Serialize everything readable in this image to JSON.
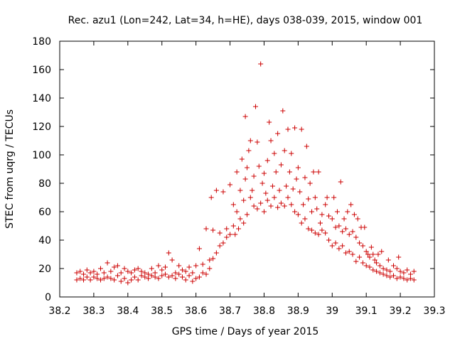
{
  "chart_data": {
    "type": "scatter",
    "title": "Rec. azu1 (Lon=242, Lat=34, h=HE), days 038-039, 2015, window 001",
    "xlabel": "GPS time / Days of year 2015",
    "ylabel": "STEC from uqrg / TECUs",
    "xlim": [
      38.2,
      39.3
    ],
    "ylim": [
      0,
      180
    ],
    "xticks": [
      "38.2",
      "38.3",
      "38.4",
      "38.5",
      "38.6",
      "38.7",
      "38.8",
      "38.9",
      "39",
      "39.1",
      "39.2",
      "39.3"
    ],
    "yticks": [
      "0",
      "20",
      "40",
      "60",
      "80",
      "100",
      "120",
      "140",
      "160",
      "180"
    ],
    "marker": "+",
    "color": "#cc0000",
    "series": [
      {
        "name": "STEC",
        "points": [
          [
            38.25,
            12
          ],
          [
            38.25,
            17
          ],
          [
            38.26,
            13
          ],
          [
            38.26,
            18
          ],
          [
            38.27,
            12
          ],
          [
            38.27,
            16
          ],
          [
            38.28,
            14
          ],
          [
            38.28,
            19
          ],
          [
            38.29,
            12
          ],
          [
            38.29,
            17
          ],
          [
            38.3,
            14
          ],
          [
            38.3,
            18
          ],
          [
            38.31,
            13
          ],
          [
            38.31,
            16
          ],
          [
            38.32,
            12
          ],
          [
            38.32,
            20
          ],
          [
            38.33,
            13
          ],
          [
            38.33,
            17
          ],
          [
            38.34,
            14
          ],
          [
            38.34,
            24
          ],
          [
            38.35,
            13
          ],
          [
            38.35,
            18
          ],
          [
            38.36,
            12
          ],
          [
            38.36,
            21
          ],
          [
            38.37,
            15
          ],
          [
            38.37,
            22
          ],
          [
            38.38,
            11
          ],
          [
            38.38,
            17
          ],
          [
            38.39,
            13
          ],
          [
            38.39,
            20
          ],
          [
            38.4,
            10
          ],
          [
            38.4,
            18
          ],
          [
            38.41,
            12
          ],
          [
            38.41,
            17
          ],
          [
            38.42,
            14
          ],
          [
            38.42,
            19
          ],
          [
            38.43,
            12
          ],
          [
            38.43,
            20
          ],
          [
            38.44,
            15
          ],
          [
            38.44,
            18
          ],
          [
            38.45,
            14
          ],
          [
            38.45,
            17
          ],
          [
            38.46,
            13
          ],
          [
            38.46,
            16
          ],
          [
            38.47,
            15
          ],
          [
            38.47,
            20
          ],
          [
            38.48,
            14
          ],
          [
            38.48,
            17
          ],
          [
            38.49,
            13
          ],
          [
            38.49,
            22
          ],
          [
            38.5,
            15
          ],
          [
            38.5,
            19
          ],
          [
            38.51,
            16
          ],
          [
            38.51,
            21
          ],
          [
            38.52,
            14
          ],
          [
            38.52,
            31
          ],
          [
            38.53,
            15
          ],
          [
            38.53,
            26
          ],
          [
            38.54,
            13
          ],
          [
            38.54,
            17
          ],
          [
            38.55,
            16
          ],
          [
            38.55,
            22
          ],
          [
            38.56,
            14
          ],
          [
            38.56,
            19
          ],
          [
            38.57,
            12
          ],
          [
            38.57,
            18
          ],
          [
            38.58,
            15
          ],
          [
            38.58,
            21
          ],
          [
            38.59,
            11
          ],
          [
            38.59,
            17
          ],
          [
            38.6,
            13
          ],
          [
            38.6,
            22
          ],
          [
            38.61,
            14
          ],
          [
            38.61,
            34
          ],
          [
            38.62,
            17
          ],
          [
            38.62,
            23
          ],
          [
            38.63,
            16
          ],
          [
            38.63,
            48
          ],
          [
            38.64,
            20
          ],
          [
            38.64,
            26
          ],
          [
            38.645,
            70
          ],
          [
            38.65,
            27
          ],
          [
            38.65,
            47
          ],
          [
            38.66,
            31
          ],
          [
            38.66,
            75
          ],
          [
            38.67,
            36
          ],
          [
            38.67,
            45
          ],
          [
            38.68,
            38
          ],
          [
            38.68,
            74
          ],
          [
            38.69,
            42
          ],
          [
            38.69,
            48
          ],
          [
            38.7,
            44
          ],
          [
            38.7,
            79
          ],
          [
            38.71,
            50
          ],
          [
            38.71,
            65
          ],
          [
            38.715,
            44
          ],
          [
            38.72,
            60
          ],
          [
            38.72,
            88
          ],
          [
            38.725,
            48
          ],
          [
            38.73,
            55
          ],
          [
            38.73,
            75
          ],
          [
            38.735,
            97
          ],
          [
            38.74,
            52
          ],
          [
            38.74,
            68
          ],
          [
            38.745,
            127
          ],
          [
            38.745,
            83
          ],
          [
            38.75,
            58
          ],
          [
            38.75,
            91
          ],
          [
            38.755,
            103
          ],
          [
            38.76,
            70
          ],
          [
            38.76,
            110
          ],
          [
            38.765,
            75
          ],
          [
            38.77,
            64
          ],
          [
            38.77,
            85
          ],
          [
            38.775,
            134
          ],
          [
            38.78,
            62
          ],
          [
            38.78,
            109
          ],
          [
            38.785,
            92
          ],
          [
            38.79,
            66
          ],
          [
            38.79,
            164
          ],
          [
            38.795,
            80
          ],
          [
            38.8,
            60
          ],
          [
            38.8,
            87
          ],
          [
            38.805,
            73
          ],
          [
            38.81,
            68
          ],
          [
            38.81,
            96
          ],
          [
            38.815,
            123
          ],
          [
            38.82,
            64
          ],
          [
            38.82,
            110
          ],
          [
            38.825,
            78
          ],
          [
            38.83,
            70
          ],
          [
            38.83,
            101
          ],
          [
            38.835,
            88
          ],
          [
            38.84,
            63
          ],
          [
            38.84,
            115
          ],
          [
            38.845,
            75
          ],
          [
            38.85,
            66
          ],
          [
            38.85,
            93
          ],
          [
            38.855,
            131
          ],
          [
            38.86,
            64
          ],
          [
            38.86,
            103
          ],
          [
            38.865,
            78
          ],
          [
            38.87,
            70
          ],
          [
            38.87,
            118
          ],
          [
            38.875,
            88
          ],
          [
            38.88,
            65
          ],
          [
            38.88,
            101
          ],
          [
            38.885,
            76
          ],
          [
            38.89,
            60
          ],
          [
            38.89,
            119
          ],
          [
            38.895,
            83
          ],
          [
            38.9,
            58
          ],
          [
            38.9,
            91
          ],
          [
            38.905,
            74
          ],
          [
            38.91,
            52
          ],
          [
            38.91,
            118
          ],
          [
            38.915,
            65
          ],
          [
            38.92,
            55
          ],
          [
            38.92,
            84
          ],
          [
            38.925,
            106
          ],
          [
            38.93,
            48
          ],
          [
            38.93,
            69
          ],
          [
            38.935,
            80
          ],
          [
            38.94,
            47
          ],
          [
            38.94,
            60
          ],
          [
            38.945,
            88
          ],
          [
            38.95,
            45
          ],
          [
            38.95,
            70
          ],
          [
            38.955,
            62
          ],
          [
            38.96,
            44
          ],
          [
            38.96,
            88
          ],
          [
            38.965,
            52
          ],
          [
            38.97,
            47
          ],
          [
            38.97,
            58
          ],
          [
            38.98,
            45
          ],
          [
            38.98,
            65
          ],
          [
            38.985,
            70
          ],
          [
            38.99,
            40
          ],
          [
            38.99,
            57
          ],
          [
            39.0,
            36
          ],
          [
            39.0,
            55
          ],
          [
            39.005,
            70
          ],
          [
            39.01,
            38
          ],
          [
            39.01,
            49
          ],
          [
            39.015,
            60
          ],
          [
            39.02,
            34
          ],
          [
            39.02,
            50
          ],
          [
            39.025,
            81
          ],
          [
            39.03,
            36
          ],
          [
            39.03,
            46
          ],
          [
            39.035,
            55
          ],
          [
            39.04,
            31
          ],
          [
            39.04,
            48
          ],
          [
            39.045,
            60
          ],
          [
            39.05,
            32
          ],
          [
            39.05,
            44
          ],
          [
            39.055,
            65
          ],
          [
            39.06,
            30
          ],
          [
            39.06,
            46
          ],
          [
            39.065,
            58
          ],
          [
            39.07,
            25
          ],
          [
            39.07,
            42
          ],
          [
            39.075,
            55
          ],
          [
            39.08,
            28
          ],
          [
            39.08,
            38
          ],
          [
            39.085,
            49
          ],
          [
            39.09,
            24
          ],
          [
            39.09,
            36
          ],
          [
            39.095,
            49
          ],
          [
            39.1,
            22
          ],
          [
            39.1,
            32
          ],
          [
            39.105,
            30
          ],
          [
            39.11,
            21
          ],
          [
            39.11,
            28
          ],
          [
            39.115,
            35
          ],
          [
            39.12,
            19
          ],
          [
            39.12,
            30
          ],
          [
            39.125,
            26
          ],
          [
            39.13,
            18
          ],
          [
            39.13,
            24
          ],
          [
            39.135,
            30
          ],
          [
            39.14,
            17
          ],
          [
            39.14,
            22
          ],
          [
            39.145,
            32
          ],
          [
            39.15,
            16
          ],
          [
            39.15,
            20
          ],
          [
            39.16,
            15
          ],
          [
            39.16,
            19
          ],
          [
            39.165,
            26
          ],
          [
            39.17,
            14
          ],
          [
            39.17,
            18
          ],
          [
            39.18,
            15
          ],
          [
            39.18,
            22
          ],
          [
            39.19,
            13
          ],
          [
            39.19,
            20
          ],
          [
            39.195,
            28
          ],
          [
            39.2,
            14
          ],
          [
            39.2,
            18
          ],
          [
            39.21,
            13
          ],
          [
            39.21,
            17
          ],
          [
            39.22,
            12
          ],
          [
            39.22,
            19
          ],
          [
            39.23,
            13
          ],
          [
            39.23,
            16
          ],
          [
            39.24,
            12
          ],
          [
            39.24,
            18
          ]
        ]
      }
    ]
  }
}
